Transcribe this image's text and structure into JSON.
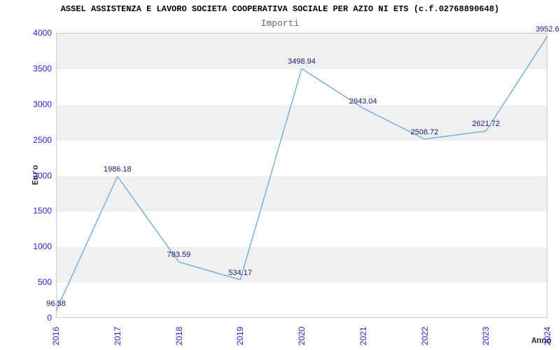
{
  "chart_data": {
    "type": "line",
    "title": "ASSEL ASSISTENZA E LAVORO SOCIETA COOPERATIVA SOCIALE PER AZIO NI ETS (c.f.02768890648)",
    "subtitle": "Importi",
    "xlabel": "Anno",
    "ylabel": "Euro",
    "categories": [
      "2016",
      "2017",
      "2018",
      "2019",
      "2020",
      "2021",
      "2022",
      "2023",
      "2024"
    ],
    "series": [
      {
        "name": "Importi",
        "values": [
          96.58,
          1986.18,
          783.59,
          534.17,
          3498.94,
          2943.04,
          2508.72,
          2621.72,
          3952.6
        ],
        "point_labels": [
          "96.58",
          "1986.18",
          "783.59",
          "534.17",
          "3498.94",
          "2943.04",
          "2508.72",
          "2621.72",
          "3952.6"
        ]
      }
    ],
    "ylim": [
      0,
      4000
    ],
    "ytick_step": 500,
    "yticks": [
      0,
      500,
      1000,
      1500,
      2000,
      2500,
      3000,
      3500,
      4000
    ],
    "grid": "alternating-horizontal-bands",
    "legend": "none",
    "colors": {
      "line": "#7aaede",
      "band": "#f0f0f0",
      "plot_border": "#cccccc",
      "tick_label": "#2424d0",
      "point_label": "#1a1a70",
      "title": "#000000",
      "subtitle": "#666666",
      "axis_title": "#333333"
    }
  }
}
